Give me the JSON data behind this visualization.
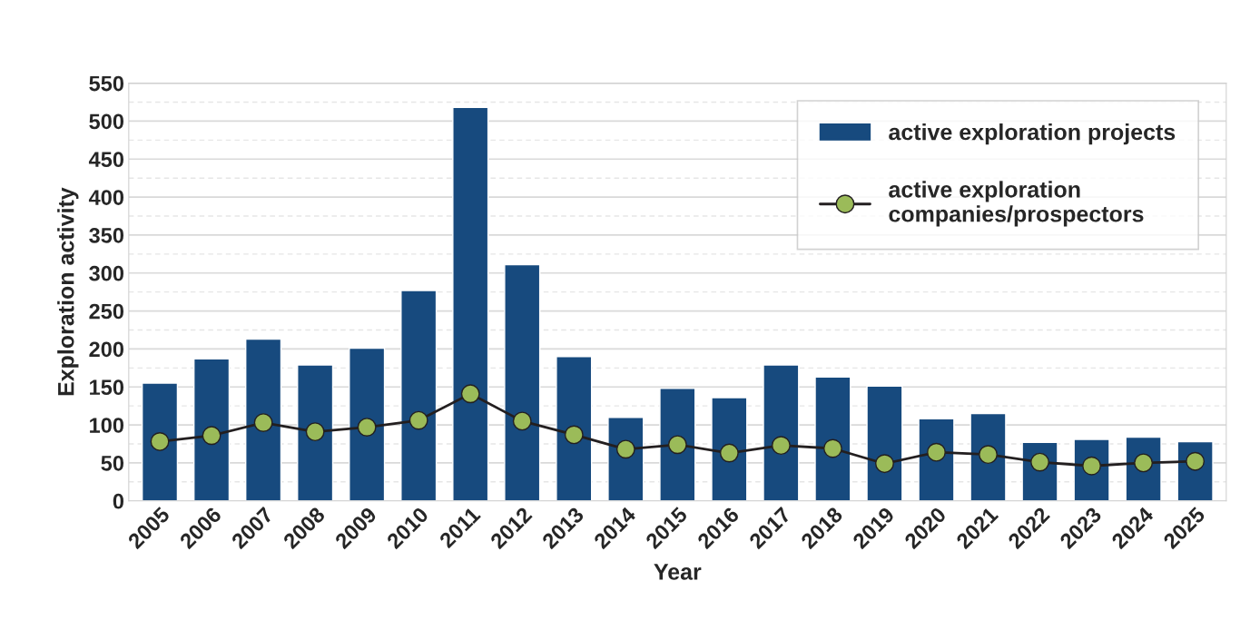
{
  "chart_data": {
    "type": "bar",
    "xlabel": "Year",
    "ylabel": "Exploration activity",
    "categories": [
      "2005",
      "2006",
      "2007",
      "2008",
      "2009",
      "2010",
      "2011",
      "2012",
      "2013",
      "2014",
      "2015",
      "2016",
      "2017",
      "2018",
      "2019",
      "2020",
      "2021",
      "2022",
      "2023",
      "2024",
      "2025"
    ],
    "series": [
      {
        "name": "active exploration projects",
        "color": "#174a7e",
        "values": [
          155,
          187,
          213,
          179,
          201,
          277,
          518,
          311,
          190,
          110,
          148,
          136,
          179,
          163,
          151,
          108,
          115,
          77,
          81,
          84,
          78
        ]
      },
      {
        "name": "active exploration\ncompanies/prospectors",
        "type": "line",
        "color": "#9bbb59",
        "marker": "circle",
        "line_style": "solid",
        "values": [
          78,
          86,
          103,
          91,
          97,
          106,
          141,
          105,
          87,
          68,
          74,
          63,
          73,
          69,
          49,
          64,
          61,
          51,
          46,
          50,
          52
        ]
      }
    ],
    "ylim": [
      0,
      550
    ],
    "yticks": [
      0,
      50,
      100,
      150,
      200,
      250,
      300,
      350,
      400,
      450,
      500,
      550
    ],
    "grid": "y",
    "legend": "top right"
  }
}
